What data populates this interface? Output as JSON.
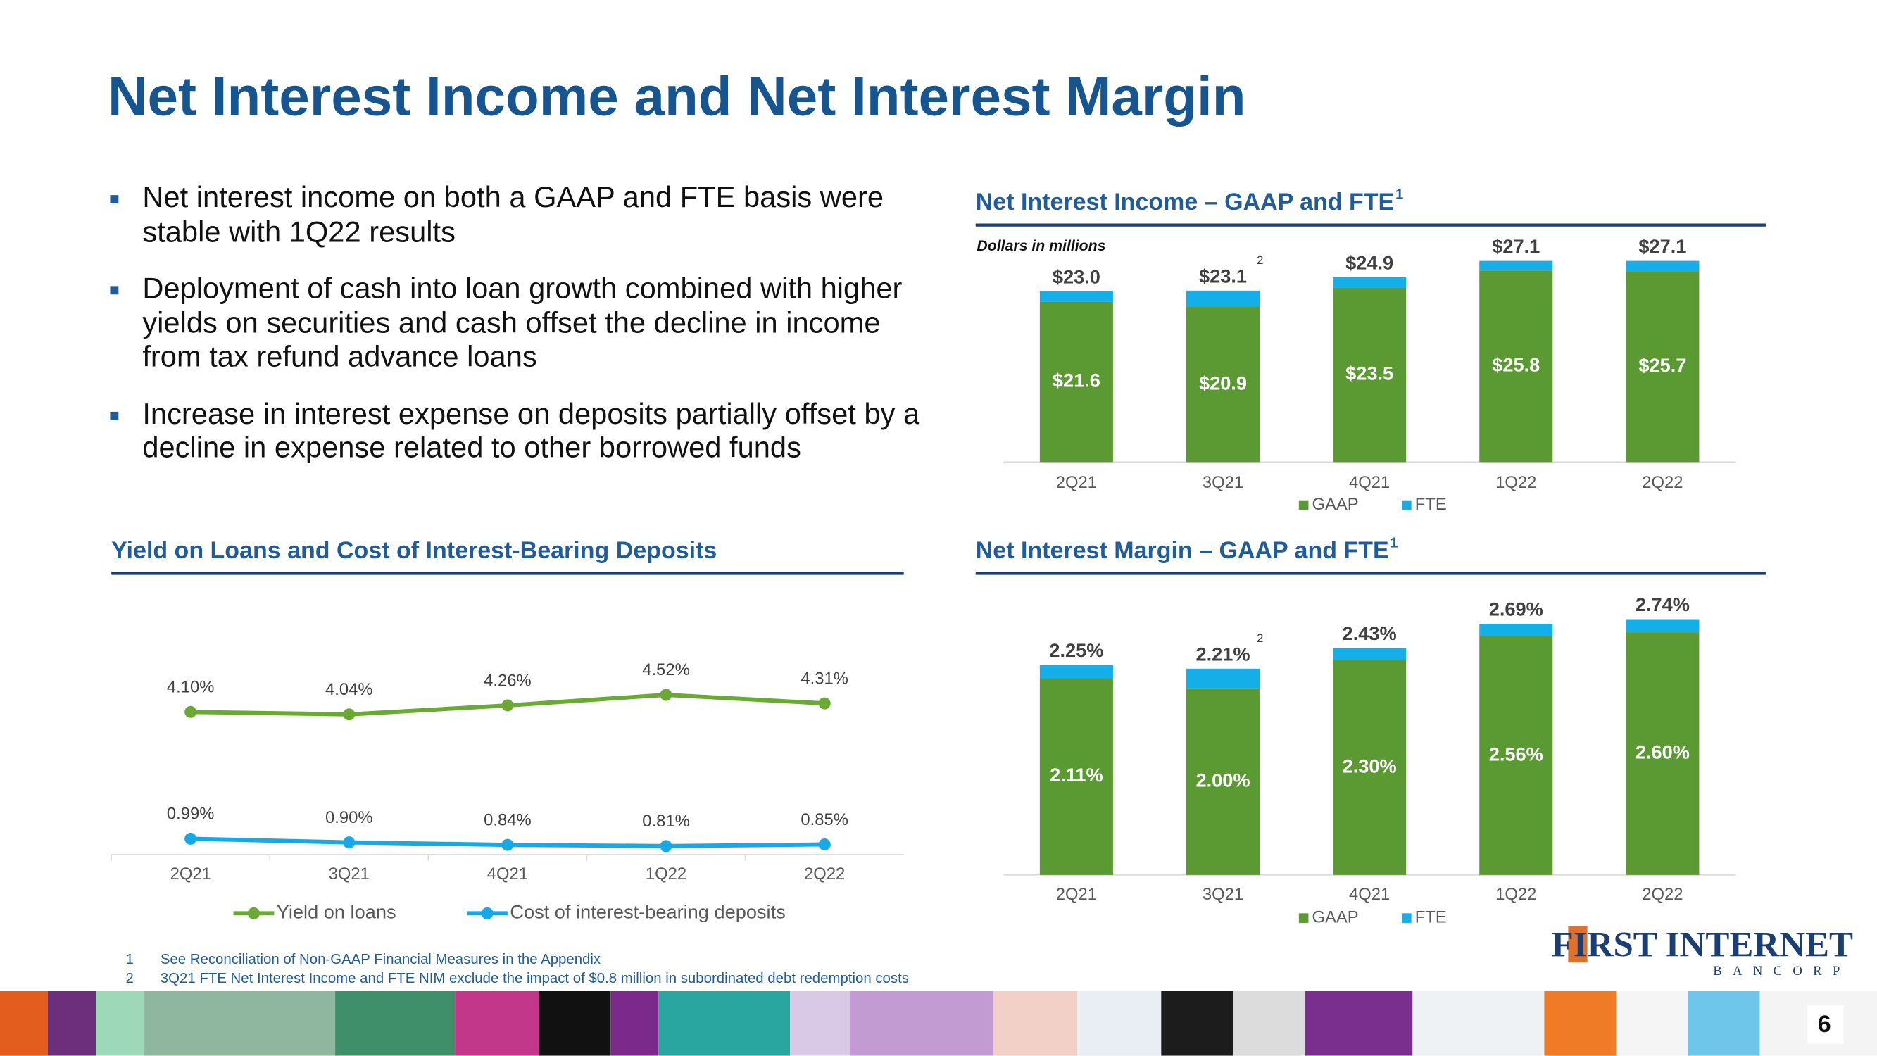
{
  "title": "Net Interest Income and Net Interest Margin",
  "bullets": [
    "Net interest income on both a GAAP and FTE basis were stable with 1Q22 results",
    "Deployment of cash into loan growth combined with higher yields on securities and cash offset the decline in income from tax refund advance loans",
    "Increase in interest expense on deposits partially offset by a decline in expense related to other borrowed funds"
  ],
  "footnotes": [
    {
      "number": "1",
      "text": "See Reconciliation of Non-GAAP Financial Measures in the Appendix"
    },
    {
      "number": "2",
      "text": "3Q21 FTE Net Interest Income and FTE NIM exclude the impact of $0.8 million in subordinated debt redemption costs"
    }
  ],
  "logo": {
    "name": "FIRST INTERNET",
    "sub": "BANCORP"
  },
  "page_number": "6",
  "chart_data": [
    {
      "type": "stacked_bar",
      "title": "Net Interest Income – GAAP and FTE",
      "title_note": "1",
      "subtitle": "Dollars in millions",
      "categories": [
        "2Q21",
        "3Q21",
        "4Q21",
        "1Q22",
        "2Q22"
      ],
      "note_marks": [
        null,
        "2",
        null,
        null,
        null
      ],
      "series": [
        {
          "name": "GAAP",
          "color": "#5b9a32",
          "values": [
            21.6,
            20.9,
            23.5,
            25.8,
            25.7
          ],
          "value_labels": [
            "$21.6",
            "$20.9",
            "$23.5",
            "$25.8",
            "$25.7"
          ]
        },
        {
          "name": "FTE",
          "color": "#14aee8",
          "values": [
            1.4,
            2.2,
            1.4,
            1.3,
            1.4
          ]
        }
      ],
      "totals": [
        23.0,
        23.1,
        24.9,
        27.1,
        27.1
      ],
      "total_labels": [
        "$23.0",
        "$23.1",
        "$24.9",
        "$27.1",
        "$27.1"
      ],
      "ylim": [
        0,
        30
      ]
    },
    {
      "type": "stacked_bar",
      "title": "Net Interest Margin – GAAP and FTE",
      "title_note": "1",
      "categories": [
        "2Q21",
        "3Q21",
        "4Q21",
        "1Q22",
        "2Q22"
      ],
      "note_marks": [
        null,
        "2",
        null,
        null,
        null
      ],
      "series": [
        {
          "name": "GAAP",
          "color": "#5b9a32",
          "values": [
            2.11,
            2.0,
            2.3,
            2.56,
            2.6
          ],
          "value_labels": [
            "2.11%",
            "2.00%",
            "2.30%",
            "2.56%",
            "2.60%"
          ]
        },
        {
          "name": "FTE",
          "color": "#14aee8",
          "values": [
            0.14,
            0.21,
            0.13,
            0.13,
            0.14
          ]
        }
      ],
      "totals": [
        2.25,
        2.21,
        2.43,
        2.69,
        2.74
      ],
      "total_labels": [
        "2.25%",
        "2.21%",
        "2.43%",
        "2.69%",
        "2.74%"
      ],
      "ylim": [
        0,
        3
      ]
    },
    {
      "type": "line",
      "title": "Yield on Loans and Cost of Interest-Bearing Deposits",
      "categories": [
        "2Q21",
        "3Q21",
        "4Q21",
        "1Q22",
        "2Q22"
      ],
      "series": [
        {
          "name": "Yield on loans",
          "color": "#6aaa34",
          "values": [
            4.1,
            4.04,
            4.26,
            4.52,
            4.31
          ],
          "value_labels": [
            "4.10%",
            "4.04%",
            "4.26%",
            "4.52%",
            "4.31%"
          ]
        },
        {
          "name": "Cost of interest-bearing deposits",
          "color": "#17a9e6",
          "values": [
            0.99,
            0.9,
            0.84,
            0.81,
            0.85
          ],
          "value_labels": [
            "0.99%",
            "0.90%",
            "0.84%",
            "0.81%",
            "0.85%"
          ]
        }
      ],
      "ylim": [
        0.6,
        7
      ]
    }
  ]
}
